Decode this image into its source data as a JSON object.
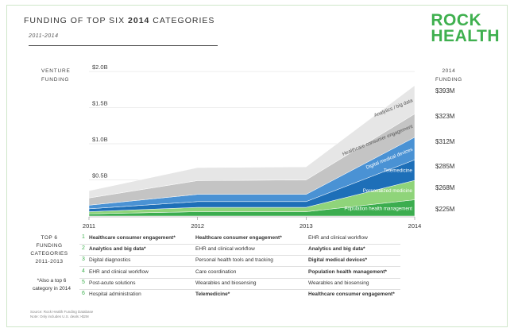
{
  "header": {
    "title_prefix": "FUNDING OF TOP SIX ",
    "title_year": "2014",
    "title_suffix": " CATEGORIES",
    "subtitle": "2011-2014"
  },
  "logo": {
    "line1": "ROCK",
    "line2": "HEALTH"
  },
  "left_label": [
    "VENTURE",
    "FUNDING"
  ],
  "right_header": [
    "2014",
    "FUNDING"
  ],
  "chart_data": {
    "type": "area",
    "stacked": true,
    "x": [
      "2011",
      "2012",
      "2013",
      "2014"
    ],
    "ylim": [
      0,
      2.0
    ],
    "yticks": [
      {
        "value": 0.5,
        "label": "$0.5B"
      },
      {
        "value": 1.0,
        "label": "$1.0B"
      },
      {
        "value": 1.5,
        "label": "$1.5B"
      },
      {
        "value": 2.0,
        "label": "$2.0B"
      }
    ],
    "ylabel": "VENTURE FUNDING",
    "series": [
      {
        "name": "Population health management",
        "values": [
          0.03,
          0.06,
          0.06,
          0.225
        ],
        "color": "#3cad4f",
        "end_label": "$225M"
      },
      {
        "name": "Personalized medicine",
        "values": [
          0.03,
          0.06,
          0.06,
          0.268
        ],
        "color": "#8fd47a",
        "end_label": "$268M"
      },
      {
        "name": "Telemedicine",
        "values": [
          0.04,
          0.08,
          0.08,
          0.285
        ],
        "color": "#1e6fb8",
        "end_label": "$285M"
      },
      {
        "name": "Digital medical devices",
        "values": [
          0.05,
          0.1,
          0.1,
          0.312
        ],
        "color": "#4a92d4",
        "end_label": "$312M"
      },
      {
        "name": "Healthcare consumer engagement",
        "values": [
          0.1,
          0.19,
          0.2,
          0.323
        ],
        "color": "#c4c4c4",
        "end_label": "$323M"
      },
      {
        "name": "Analytics / big data",
        "values": [
          0.1,
          0.18,
          0.18,
          0.393
        ],
        "color": "#e6e6e6",
        "end_label": "$393M"
      }
    ]
  },
  "table": {
    "heading": [
      "TOP 6",
      "FUNDING",
      "CATEGORIES",
      "2011-2013"
    ],
    "note": [
      "*Also a top 6",
      "category in 2014"
    ],
    "numbers": [
      "1",
      "2",
      "3",
      "4",
      "5",
      "6"
    ],
    "columns": [
      [
        {
          "text": "Healthcare consumer engagement*",
          "bold": true
        },
        {
          "text": "Analytics and big data*",
          "bold": true
        },
        {
          "text": "Digital diagnostics",
          "bold": false
        },
        {
          "text": "EHR and clinical workflow",
          "bold": false
        },
        {
          "text": "Post-acute solutions",
          "bold": false
        },
        {
          "text": "Hospital administration",
          "bold": false
        }
      ],
      [
        {
          "text": "Healthcare consumer engagement*",
          "bold": true
        },
        {
          "text": "EHR and clinical workflow",
          "bold": false
        },
        {
          "text": "Personal health tools and tracking",
          "bold": false
        },
        {
          "text": "Care coordination",
          "bold": false
        },
        {
          "text": "Wearables and biosensing",
          "bold": false
        },
        {
          "text": "Telemedicine*",
          "bold": true
        }
      ],
      [
        {
          "text": "EHR and clinical workflow",
          "bold": false
        },
        {
          "text": "Analytics and big data*",
          "bold": true
        },
        {
          "text": "Digital medical devices*",
          "bold": true
        },
        {
          "text": "Population health management*",
          "bold": true
        },
        {
          "text": "Wearables and biosensing",
          "bold": false
        },
        {
          "text": "Healthcare consumer engagement*",
          "bold": true
        }
      ]
    ]
  },
  "source": [
    "Source: Rock Health Funding Database",
    "Note: Only includes U.S. deals >$2M"
  ],
  "colors": {
    "accent": "#3fb04f",
    "blue_dark": "#1e6fb8",
    "blue_mid": "#4a92d4"
  }
}
